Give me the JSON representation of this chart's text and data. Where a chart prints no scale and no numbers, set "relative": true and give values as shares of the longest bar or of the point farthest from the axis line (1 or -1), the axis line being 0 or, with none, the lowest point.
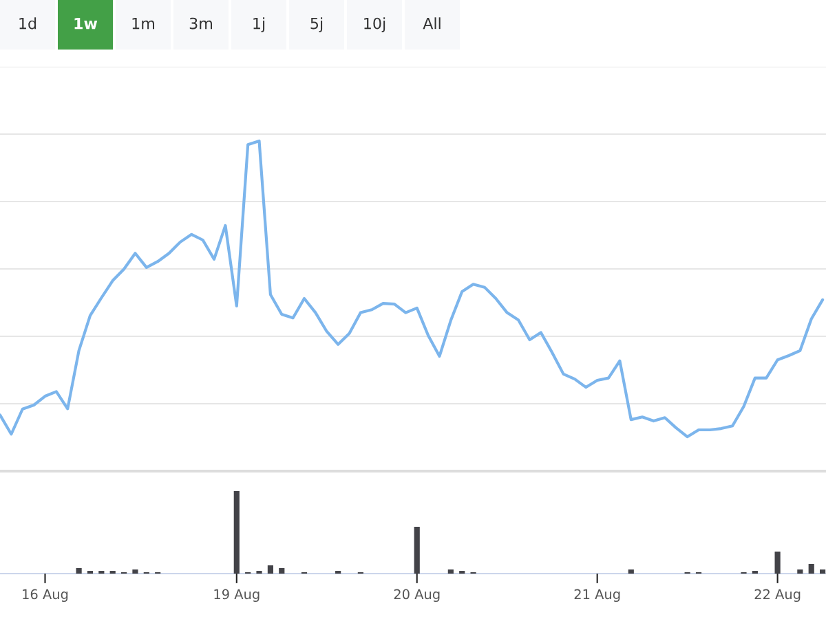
{
  "chart_data": [
    {
      "type": "line",
      "relative": true,
      "grid": "y",
      "categories": [
        null,
        null,
        null,
        null,
        null,
        null,
        null,
        null,
        null,
        null,
        null,
        null,
        null,
        null,
        null,
        null,
        null,
        null,
        null,
        null,
        null,
        null,
        null,
        null,
        null,
        null,
        null,
        null,
        null,
        null,
        null,
        null,
        null,
        null,
        null,
        null,
        null,
        null,
        null,
        null,
        null,
        null,
        null,
        null,
        null,
        null,
        null,
        null,
        null,
        null,
        null,
        null,
        null,
        null,
        null,
        null,
        null,
        null,
        null,
        null,
        null,
        null,
        null,
        null,
        null,
        null,
        null,
        null,
        null,
        null,
        null,
        null,
        null,
        null
      ],
      "annotations": [
        "1d",
        "1w",
        "1m",
        "3m",
        "1j",
        "5j",
        "10j",
        "All"
      ],
      "series": [
        {
          "color": "#7cb5ec",
          "values": [
            0.17,
            0.112,
            0.188,
            0.2,
            0.227,
            0.241,
            0.189,
            0.365,
            0.471,
            0.525,
            0.577,
            0.612,
            0.66,
            0.617,
            0.635,
            0.66,
            0.694,
            0.717,
            0.7,
            0.642,
            0.744,
            0.5,
            0.989,
            1,
            0.535,
            0.475,
            0.464,
            0.523,
            0.48,
            0.423,
            0.384,
            0.417,
            0.48,
            0.489,
            0.508,
            0.506,
            0.48,
            0.494,
            0.411,
            0.348,
            0.456,
            0.544,
            0.566,
            0.557,
            0.523,
            0.48,
            0.458,
            0.398,
            0.42,
            0.359,
            0.294,
            0.279,
            0.254,
            0.275,
            0.282,
            0.334,
            0.156,
            0.164,
            0.152,
            0.162,
            0.131,
            0.104,
            0.125,
            0.125,
            0.129,
            0.137,
            0.196,
            0.282,
            0.282,
            0.337,
            0.35,
            0.365,
            0.461,
            0.519
          ]
        }
      ]
    },
    {
      "type": "bar",
      "relative": true,
      "tick_labels": "x",
      "categories": [
        null,
        null,
        null,
        null,
        "16 Aug",
        null,
        null,
        null,
        null,
        null,
        null,
        null,
        null,
        null,
        null,
        null,
        null,
        null,
        null,
        null,
        null,
        "19 Aug",
        null,
        null,
        null,
        null,
        null,
        null,
        null,
        null,
        null,
        null,
        null,
        null,
        null,
        null,
        null,
        "20 Aug",
        null,
        null,
        null,
        null,
        null,
        null,
        null,
        null,
        null,
        null,
        null,
        null,
        null,
        null,
        null,
        "21 Aug",
        null,
        null,
        null,
        null,
        null,
        null,
        null,
        null,
        null,
        null,
        null,
        null,
        null,
        null,
        null,
        "22 Aug",
        null,
        null,
        null,
        null
      ],
      "series": [
        {
          "color": "#434348",
          "values": [
            0,
            0,
            0,
            0,
            0,
            0,
            0,
            0.067,
            0.033,
            0.033,
            0.033,
            0.017,
            0.05,
            0.017,
            0.017,
            0,
            0,
            0,
            0,
            0,
            0,
            1,
            0.017,
            0.033,
            0.1,
            0.067,
            0,
            0.017,
            0,
            0,
            0.033,
            0,
            0.017,
            0,
            0,
            0,
            0,
            0.567,
            0,
            0,
            0.05,
            0.033,
            0.017,
            0,
            0,
            0,
            0,
            0,
            0,
            0,
            0,
            0,
            0,
            0,
            0,
            0,
            0.05,
            0,
            0,
            0,
            0,
            0.017,
            0.017,
            0,
            0,
            0,
            0.017,
            0.033,
            0,
            0.267,
            0,
            0.05,
            0.117,
            0.05
          ]
        }
      ]
    }
  ]
}
